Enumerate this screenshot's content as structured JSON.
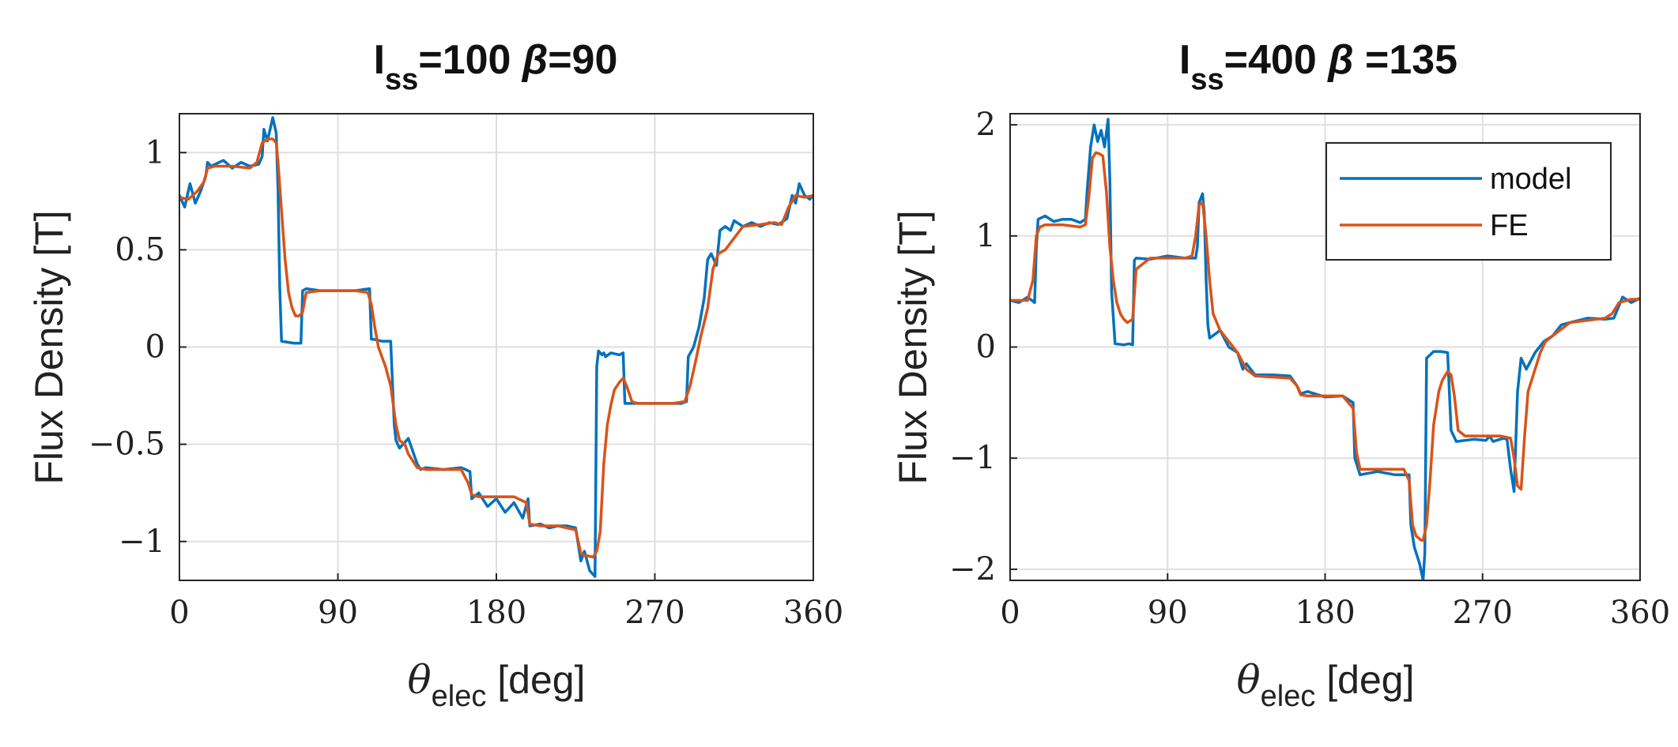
{
  "chart_data": [
    {
      "type": "line",
      "title": {
        "main": "I",
        "sub": "ss",
        "rest": "=100 ",
        "beta": "β",
        "tail": "=90"
      },
      "xlabel": {
        "symbol": "θ",
        "sub": "elec",
        "rest": " [deg]"
      },
      "ylabel": "Flux Density [T]",
      "xlim": [
        0,
        360
      ],
      "ylim": [
        -1.2,
        1.2
      ],
      "xticks": [
        0,
        90,
        180,
        270,
        360
      ],
      "xtick_labels": [
        "0",
        "90",
        "180",
        "270",
        "360"
      ],
      "yticks": [
        1,
        0.5,
        0,
        -0.5,
        -1
      ],
      "ytick_labels": [
        "1",
        "0.5",
        "0",
        "−0.5",
        "−1"
      ],
      "grid": true,
      "series": [
        {
          "name": "model",
          "color": "#0072BD",
          "x": [
            0,
            3,
            6,
            9,
            12,
            15,
            16,
            18,
            25,
            30,
            35,
            40,
            45,
            47,
            48,
            50,
            53,
            55,
            56,
            57,
            58,
            65,
            69,
            70,
            72,
            80,
            90,
            100,
            108,
            109,
            110,
            115,
            120,
            122,
            123,
            125,
            130,
            135,
            137,
            140,
            150,
            160,
            165,
            166,
            170,
            175,
            180,
            185,
            190,
            195,
            198,
            199,
            205,
            210,
            215,
            220,
            225,
            228,
            230,
            233,
            236,
            237,
            238,
            240,
            241,
            242,
            245,
            250,
            252,
            253,
            255,
            265,
            275,
            285,
            288,
            289,
            292,
            295,
            298,
            300,
            302,
            305,
            307,
            310,
            313,
            315,
            320,
            325,
            330,
            335,
            340,
            345,
            348,
            350,
            352,
            355,
            358,
            360
          ],
          "y": [
            0.78,
            0.72,
            0.84,
            0.74,
            0.8,
            0.88,
            0.95,
            0.93,
            0.96,
            0.92,
            0.95,
            0.93,
            0.94,
            0.98,
            1.12,
            1.06,
            1.18,
            1.1,
            0.8,
            0.3,
            0.03,
            0.02,
            0.02,
            0.29,
            0.3,
            0.29,
            0.29,
            0.29,
            0.3,
            0.04,
            0.04,
            0.03,
            0.03,
            -0.4,
            -0.48,
            -0.52,
            -0.47,
            -0.6,
            -0.63,
            -0.62,
            -0.63,
            -0.62,
            -0.64,
            -0.78,
            -0.75,
            -0.82,
            -0.78,
            -0.85,
            -0.8,
            -0.88,
            -0.78,
            -0.92,
            -0.91,
            -0.93,
            -0.92,
            -0.92,
            -0.93,
            -1.1,
            -1.05,
            -1.15,
            -1.18,
            -0.1,
            -0.02,
            -0.04,
            -0.03,
            -0.05,
            -0.03,
            -0.04,
            -0.03,
            -0.29,
            -0.29,
            -0.29,
            -0.29,
            -0.29,
            -0.28,
            -0.05,
            0.0,
            0.1,
            0.25,
            0.45,
            0.48,
            0.42,
            0.6,
            0.62,
            0.6,
            0.65,
            0.62,
            0.64,
            0.62,
            0.64,
            0.63,
            0.66,
            0.78,
            0.74,
            0.84,
            0.78,
            0.76,
            0.78
          ]
        },
        {
          "name": "FE",
          "color": "#D95319",
          "x": [
            0,
            5,
            10,
            14,
            16,
            20,
            30,
            40,
            44,
            47,
            50,
            53,
            55,
            56,
            58,
            60,
            62,
            64,
            66,
            68,
            70,
            72,
            80,
            90,
            100,
            107,
            109,
            111,
            113,
            115,
            117,
            120,
            123,
            125,
            128,
            130,
            135,
            140,
            150,
            160,
            164,
            166,
            170,
            180,
            190,
            197,
            199,
            205,
            215,
            225,
            228,
            230,
            235,
            237,
            239,
            241,
            243,
            245,
            247,
            250,
            252,
            254,
            257,
            260,
            270,
            280,
            287,
            290,
            293,
            296,
            300,
            303,
            306,
            310,
            320,
            330,
            338,
            342,
            346,
            350,
            355,
            360
          ],
          "y": [
            0.77,
            0.76,
            0.8,
            0.85,
            0.92,
            0.93,
            0.93,
            0.92,
            0.95,
            1.05,
            1.07,
            1.07,
            1.05,
            0.95,
            0.7,
            0.45,
            0.28,
            0.2,
            0.16,
            0.16,
            0.18,
            0.28,
            0.29,
            0.29,
            0.29,
            0.28,
            0.22,
            0.1,
            0.0,
            -0.05,
            -0.1,
            -0.2,
            -0.4,
            -0.48,
            -0.5,
            -0.55,
            -0.62,
            -0.63,
            -0.63,
            -0.63,
            -0.7,
            -0.76,
            -0.77,
            -0.77,
            -0.77,
            -0.8,
            -0.91,
            -0.92,
            -0.92,
            -0.94,
            -1.06,
            -1.07,
            -1.08,
            -1.05,
            -0.95,
            -0.6,
            -0.4,
            -0.3,
            -0.22,
            -0.18,
            -0.16,
            -0.2,
            -0.28,
            -0.29,
            -0.29,
            -0.29,
            -0.28,
            -0.2,
            -0.08,
            0.05,
            0.2,
            0.4,
            0.48,
            0.5,
            0.62,
            0.63,
            0.64,
            0.63,
            0.72,
            0.78,
            0.77,
            0.78
          ]
        }
      ]
    },
    {
      "type": "line",
      "title": {
        "main": "I",
        "sub": "ss",
        "rest": "=400 ",
        "beta": "β",
        "tail": " =135"
      },
      "xlabel": {
        "symbol": "θ",
        "sub": "elec",
        "rest": " [deg]"
      },
      "ylabel": "Flux Density [T]",
      "xlim": [
        0,
        360
      ],
      "ylim": [
        -2.1,
        2.1
      ],
      "xticks": [
        0,
        90,
        180,
        270,
        360
      ],
      "xtick_labels": [
        "0",
        "90",
        "180",
        "270",
        "360"
      ],
      "yticks": [
        2,
        1,
        0,
        -1,
        -2
      ],
      "ytick_labels": [
        "2",
        "1",
        "0",
        "−1",
        "−2"
      ],
      "grid": true,
      "legend": {
        "position": "top-right",
        "entries": [
          "model",
          "FE"
        ]
      },
      "series": [
        {
          "name": "model",
          "color": "#0072BD",
          "x": [
            0,
            5,
            10,
            14,
            15,
            16,
            20,
            25,
            30,
            35,
            40,
            43,
            44,
            46,
            48,
            50,
            52,
            54,
            56,
            57,
            58,
            60,
            65,
            68,
            70,
            71,
            72,
            80,
            90,
            100,
            106,
            107,
            108,
            110,
            111,
            112,
            113,
            114,
            120,
            125,
            130,
            133,
            135,
            140,
            150,
            160,
            164,
            166,
            170,
            180,
            190,
            196,
            197,
            200,
            210,
            220,
            228,
            229,
            231,
            234,
            236,
            237,
            238,
            242,
            246,
            250,
            251,
            252,
            255,
            265,
            272,
            274,
            276,
            282,
            284,
            286,
            287,
            288,
            290,
            292,
            295,
            300,
            305,
            310,
            315,
            320,
            325,
            330,
            340,
            345,
            350,
            355,
            360
          ],
          "y": [
            0.42,
            0.4,
            0.45,
            0.4,
            0.9,
            1.15,
            1.18,
            1.13,
            1.15,
            1.15,
            1.12,
            1.15,
            1.4,
            1.8,
            2.0,
            1.85,
            1.95,
            1.8,
            2.05,
            1.5,
            0.5,
            0.03,
            0.02,
            0.03,
            0.02,
            0.78,
            0.8,
            0.79,
            0.82,
            0.8,
            0.8,
            0.9,
            1.3,
            1.38,
            1.2,
            0.6,
            0.2,
            0.08,
            0.15,
            0.0,
            -0.05,
            -0.2,
            -0.15,
            -0.25,
            -0.25,
            -0.26,
            -0.35,
            -0.42,
            -0.4,
            -0.45,
            -0.44,
            -0.5,
            -1.0,
            -1.15,
            -1.12,
            -1.15,
            -1.15,
            -1.6,
            -1.8,
            -1.95,
            -2.1,
            -1.85,
            -0.1,
            -0.04,
            -0.04,
            -0.05,
            -0.4,
            -0.75,
            -0.85,
            -0.83,
            -0.84,
            -0.8,
            -0.85,
            -0.82,
            -0.83,
            -1.1,
            -1.2,
            -1.3,
            -0.4,
            -0.1,
            -0.2,
            -0.05,
            0.05,
            0.1,
            0.2,
            0.22,
            0.24,
            0.26,
            0.25,
            0.26,
            0.45,
            0.4,
            0.44
          ]
        },
        {
          "name": "FE",
          "color": "#D95319",
          "x": [
            0,
            10,
            13,
            15,
            17,
            20,
            30,
            40,
            43,
            45,
            47,
            49,
            51,
            53,
            55,
            57,
            59,
            61,
            63,
            65,
            67,
            70,
            72,
            80,
            90,
            100,
            104,
            106,
            108,
            110,
            112,
            114,
            116,
            120,
            125,
            130,
            135,
            140,
            150,
            160,
            164,
            166,
            170,
            190,
            196,
            198,
            200,
            210,
            225,
            228,
            230,
            232,
            235,
            236,
            238,
            240,
            242,
            245,
            247,
            250,
            252,
            254,
            256,
            260,
            270,
            280,
            286,
            288,
            290,
            292,
            294,
            296,
            300,
            303,
            306,
            310,
            320,
            335,
            340,
            344,
            348,
            355,
            360
          ],
          "y": [
            0.42,
            0.42,
            0.6,
            1.0,
            1.08,
            1.1,
            1.1,
            1.08,
            1.1,
            1.35,
            1.7,
            1.75,
            1.74,
            1.72,
            1.4,
            0.9,
            0.6,
            0.4,
            0.3,
            0.25,
            0.22,
            0.25,
            0.7,
            0.8,
            0.8,
            0.8,
            0.82,
            1.0,
            1.28,
            1.3,
            1.0,
            0.6,
            0.3,
            0.15,
            0.05,
            -0.05,
            -0.2,
            -0.26,
            -0.27,
            -0.28,
            -0.35,
            -0.43,
            -0.44,
            -0.44,
            -0.55,
            -0.95,
            -1.1,
            -1.1,
            -1.1,
            -1.2,
            -1.6,
            -1.7,
            -1.74,
            -1.74,
            -1.6,
            -1.2,
            -0.7,
            -0.4,
            -0.3,
            -0.22,
            -0.25,
            -0.45,
            -0.75,
            -0.8,
            -0.8,
            -0.8,
            -0.82,
            -1.0,
            -1.25,
            -1.28,
            -0.8,
            -0.4,
            -0.2,
            -0.05,
            0.05,
            0.1,
            0.22,
            0.25,
            0.26,
            0.3,
            0.4,
            0.43,
            0.43
          ]
        }
      ]
    }
  ]
}
